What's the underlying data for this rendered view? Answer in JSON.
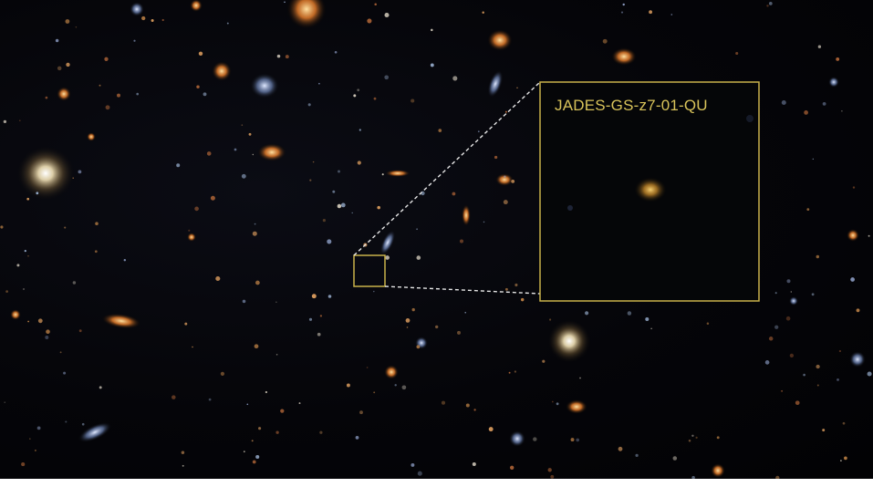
{
  "image": {
    "subject": "deep field galaxy image",
    "highlight_target_label": "JADES-GS-z7-01-QU"
  },
  "colors": {
    "frame": "#c9b24a",
    "label": "#d8c35a",
    "connector": "#e6e6e6",
    "sky": "#040408",
    "inset_bg": "#050608",
    "target_glow": "#d4a640"
  }
}
